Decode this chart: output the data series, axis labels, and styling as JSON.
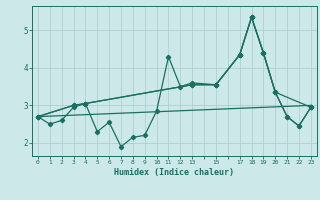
{
  "xlabel": "Humidex (Indice chaleur)",
  "bg_color": "#cce8e8",
  "grid_color": "#aacccc",
  "line_color": "#1a7060",
  "xlim": [
    -0.5,
    23.5
  ],
  "ylim": [
    1.65,
    5.65
  ],
  "xticks": [
    0,
    1,
    2,
    3,
    4,
    5,
    6,
    7,
    8,
    9,
    10,
    11,
    12,
    13,
    14,
    15,
    16,
    17,
    18,
    19,
    20,
    21,
    22,
    23
  ],
  "xtick_labels": [
    "0",
    "1",
    "2",
    "3",
    "4",
    "5",
    "6",
    "7",
    "8",
    "9",
    "10",
    "11",
    "12",
    "13",
    "",
    "15",
    "",
    "17",
    "18",
    "19",
    "20",
    "21",
    "22",
    "23"
  ],
  "yticks": [
    2,
    3,
    4,
    5
  ],
  "line1_x": [
    0,
    1,
    2,
    3,
    4,
    5,
    6,
    7,
    8,
    9,
    10,
    11,
    12,
    13,
    15,
    17,
    18,
    19,
    20,
    21,
    22,
    23
  ],
  "line1_y": [
    2.7,
    2.5,
    2.6,
    2.95,
    3.05,
    2.3,
    2.55,
    1.9,
    2.15,
    2.2,
    2.85,
    4.3,
    3.5,
    3.6,
    3.55,
    4.35,
    5.35,
    4.4,
    3.35,
    2.7,
    2.45,
    2.95
  ],
  "line2_x": [
    0,
    3,
    4,
    13,
    15,
    17,
    18,
    19,
    20,
    21,
    22,
    23
  ],
  "line2_y": [
    2.7,
    3.0,
    3.05,
    3.55,
    3.55,
    4.35,
    5.35,
    4.4,
    3.35,
    2.7,
    2.45,
    2.95
  ],
  "line3_x": [
    0,
    23
  ],
  "line3_y": [
    2.7,
    3.0
  ],
  "line4_x": [
    0,
    3,
    4,
    13,
    15,
    17,
    18,
    19,
    20,
    23
  ],
  "line4_y": [
    2.7,
    3.0,
    3.05,
    3.55,
    3.55,
    4.35,
    5.35,
    4.4,
    3.35,
    2.95
  ]
}
